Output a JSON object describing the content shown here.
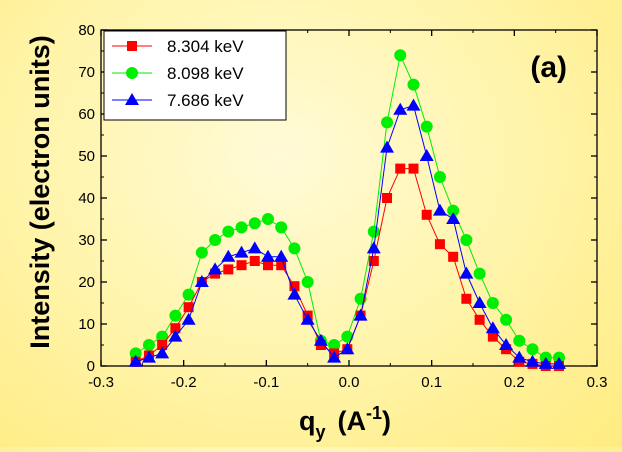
{
  "chart_data": {
    "type": "line",
    "panel_label": "(a)",
    "xlabel": "q",
    "xlabel_sub": "y",
    "xlabel_units_open": "(A",
    "xlabel_units_sup": "-1",
    "xlabel_units_close": ")",
    "ylabel": "Intensity  (electron units)",
    "xlim": [
      -0.3,
      0.3
    ],
    "ylim": [
      0,
      80
    ],
    "xticks": [
      -0.3,
      -0.2,
      -0.1,
      0.0,
      0.1,
      0.2,
      0.3
    ],
    "xtick_labels": [
      "-0.3",
      "-0.2",
      "-0.1",
      "0.0",
      "0.1",
      "0.2",
      "0.3"
    ],
    "yticks": [
      0,
      10,
      20,
      30,
      40,
      50,
      60,
      70,
      80
    ],
    "ytick_labels": [
      "0",
      "10",
      "20",
      "30",
      "40",
      "50",
      "60",
      "70",
      "80"
    ],
    "grid": false,
    "legend_position": "top-left",
    "series": [
      {
        "name": "8.304 keV",
        "color": "#ff0000",
        "marker": "square",
        "x": [
          -0.258,
          -0.242,
          -0.226,
          -0.21,
          -0.194,
          -0.178,
          -0.162,
          -0.146,
          -0.13,
          -0.114,
          -0.098,
          -0.082,
          -0.066,
          -0.05,
          -0.034,
          -0.018,
          -0.002,
          0.014,
          0.03,
          0.046,
          0.062,
          0.078,
          0.094,
          0.11,
          0.126,
          0.142,
          0.158,
          0.174,
          0.19,
          0.206,
          0.222,
          0.238,
          0.254
        ],
        "y": [
          1,
          2.5,
          5,
          9,
          14,
          20,
          22,
          23,
          24,
          25,
          24,
          24,
          19,
          12,
          5,
          3,
          4,
          12,
          25,
          40,
          47,
          47,
          36,
          29,
          26,
          16,
          11,
          7,
          4,
          1,
          0.5,
          0,
          0
        ]
      },
      {
        "name": "8.098 keV",
        "color": "#00ee00",
        "marker": "circle",
        "x": [
          -0.258,
          -0.242,
          -0.226,
          -0.21,
          -0.194,
          -0.178,
          -0.162,
          -0.146,
          -0.13,
          -0.114,
          -0.098,
          -0.082,
          -0.066,
          -0.05,
          -0.034,
          -0.018,
          -0.002,
          0.014,
          0.03,
          0.046,
          0.062,
          0.078,
          0.094,
          0.11,
          0.126,
          0.142,
          0.158,
          0.174,
          0.19,
          0.206,
          0.222,
          0.238,
          0.254
        ],
        "y": [
          3,
          5,
          7,
          12,
          17,
          27,
          30,
          32,
          33,
          34,
          35,
          33,
          28,
          20,
          6,
          5,
          7,
          16,
          32,
          58,
          74,
          67,
          57,
          45,
          37,
          30,
          22,
          15,
          11,
          6,
          4,
          2,
          2
        ]
      },
      {
        "name": "7.686 keV",
        "color": "#0000ff",
        "marker": "triangle",
        "x": [
          -0.258,
          -0.242,
          -0.226,
          -0.21,
          -0.194,
          -0.178,
          -0.162,
          -0.146,
          -0.13,
          -0.114,
          -0.098,
          -0.082,
          -0.066,
          -0.05,
          -0.034,
          -0.018,
          -0.002,
          0.014,
          0.03,
          0.046,
          0.062,
          0.078,
          0.094,
          0.11,
          0.126,
          0.142,
          0.158,
          0.174,
          0.19,
          0.206,
          0.222,
          0.238,
          0.254
        ],
        "y": [
          1,
          2,
          3,
          7,
          11,
          20,
          23,
          26,
          27,
          28,
          26,
          26,
          17,
          11,
          6,
          2,
          4,
          12,
          28,
          52,
          61,
          62,
          50,
          37,
          35,
          22,
          15,
          9,
          5,
          2,
          1,
          0.5,
          0.5
        ]
      }
    ]
  }
}
